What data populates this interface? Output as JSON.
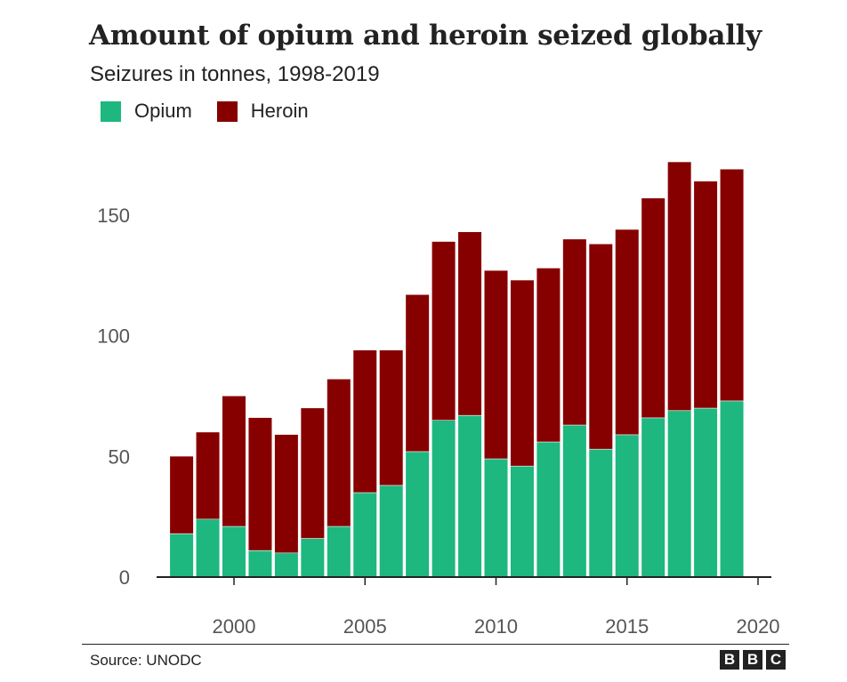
{
  "chart_data": {
    "type": "bar",
    "stacked": true,
    "title": "Amount of opium and heroin seized globally",
    "subtitle": "Seizures in tonnes, 1998-2019",
    "xlabel": "",
    "ylabel": "",
    "x": [
      1998,
      1999,
      2000,
      2001,
      2002,
      2003,
      2004,
      2005,
      2006,
      2007,
      2008,
      2009,
      2010,
      2011,
      2012,
      2013,
      2014,
      2015,
      2016,
      2017,
      2018,
      2019
    ],
    "series": [
      {
        "name": "Opium",
        "color": "#1db77f",
        "values": [
          18,
          24,
          21,
          11,
          10,
          16,
          21,
          35,
          38,
          52,
          65,
          67,
          49,
          46,
          56,
          63,
          53,
          59,
          66,
          69,
          70,
          73
        ]
      },
      {
        "name": "Heroin",
        "color": "#870000",
        "values": [
          32,
          36,
          54,
          55,
          49,
          54,
          61,
          59,
          56,
          65,
          74,
          76,
          78,
          77,
          72,
          77,
          85,
          85,
          91,
          103,
          94,
          96
        ]
      }
    ],
    "xlim": [
      1997,
      2020.5
    ],
    "ylim": [
      0,
      180
    ],
    "yticks": [
      0,
      50,
      100,
      150
    ],
    "xticks": [
      2000,
      2005,
      2010,
      2015,
      2020
    ],
    "grid": false,
    "legend_position": "top-left"
  },
  "legend": {
    "opium_label": "Opium",
    "heroin_label": "Heroin"
  },
  "footer": {
    "source": "Source: UNODC",
    "logo_letters": [
      "B",
      "B",
      "C"
    ]
  }
}
